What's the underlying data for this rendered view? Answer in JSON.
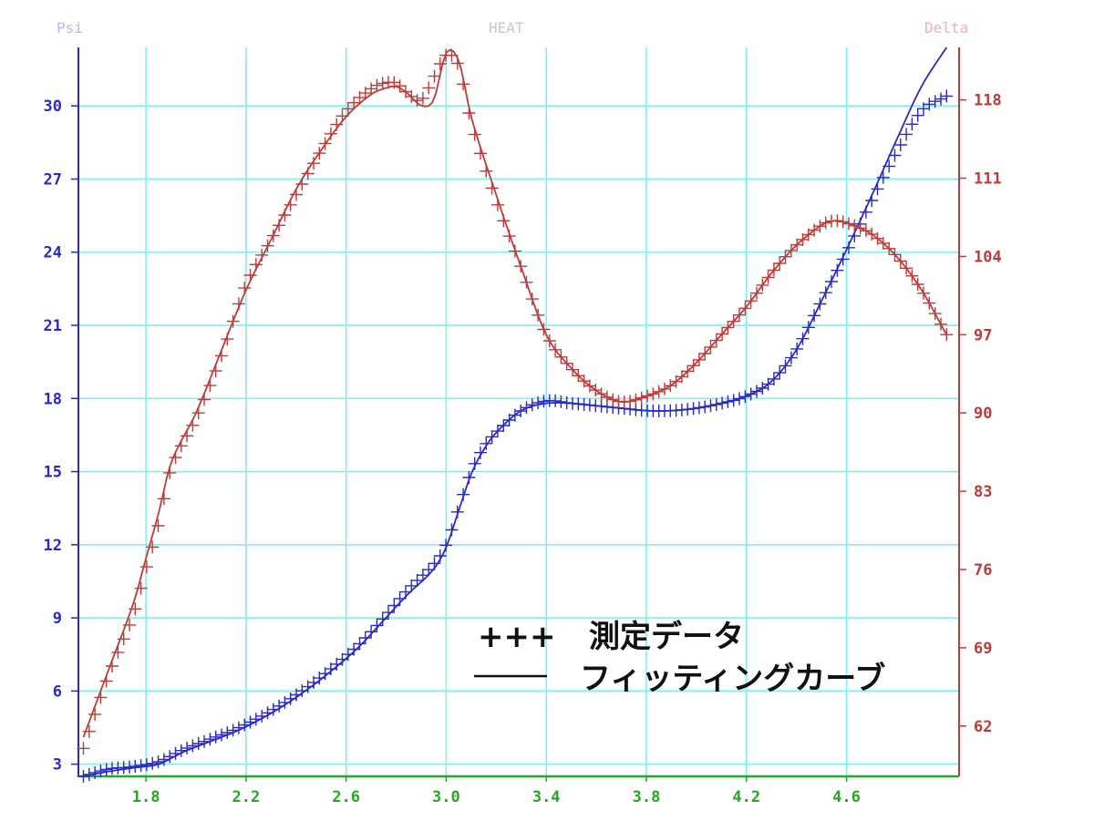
{
  "chart_data": {
    "type": "line",
    "title": "HEAT",
    "ylabel_left": "Psi",
    "ylabel_right": "Delta",
    "xlim": [
      1.53,
      5.05
    ],
    "ylim_left": [
      2.5,
      32.4
    ],
    "ylim_right": [
      57.5,
      122.7
    ],
    "grid": true,
    "x_ticks": [
      "1.8",
      "2.2",
      "2.6",
      "3.0",
      "3.4",
      "3.8",
      "4.2",
      "4.6"
    ],
    "y_left_ticks": [
      "3",
      "6",
      "9",
      "12",
      "15",
      "18",
      "21",
      "24",
      "27",
      "30"
    ],
    "y_right_ticks": [
      "62",
      "69",
      "76",
      "83",
      "90",
      "97",
      "104",
      "111",
      "118"
    ],
    "legend": {
      "placement": "bottom-right",
      "measured_marker": "+++",
      "measured_label": "測定データ",
      "fit_marker": "——",
      "fit_label": "フィッティングカーブ"
    },
    "colors": {
      "psi": "#2a2ac8",
      "delta": "#c03a3a",
      "grid": "#7ff0f0",
      "x_axis": "#22aa22"
    },
    "series": [
      {
        "axis": "left",
        "x": [
          1.55,
          1.65,
          1.75,
          1.85,
          1.95,
          2.05,
          2.15,
          2.25,
          2.35,
          2.45,
          2.55,
          2.65,
          2.75,
          2.85,
          2.95,
          3.0,
          3.05,
          3.1,
          3.15,
          3.2,
          3.3,
          3.4,
          3.5,
          3.6,
          3.7,
          3.8,
          3.9,
          4.0,
          4.1,
          4.2,
          4.3,
          4.4,
          4.5,
          4.6,
          4.7,
          4.8,
          4.9,
          5.0
        ],
        "measured": [
          2.5,
          2.8,
          2.9,
          3.1,
          3.6,
          4.0,
          4.4,
          4.9,
          5.5,
          6.2,
          7.0,
          7.9,
          9.0,
          10.2,
          11.2,
          12.0,
          13.5,
          15.0,
          16.0,
          16.6,
          17.5,
          17.9,
          17.8,
          17.7,
          17.6,
          17.5,
          17.5,
          17.6,
          17.8,
          18.1,
          18.7,
          20.0,
          22.0,
          24.0,
          26.1,
          28.1,
          29.8,
          30.4
        ],
        "fitting": [
          2.5,
          2.7,
          2.85,
          3.0,
          3.5,
          3.9,
          4.3,
          4.8,
          5.4,
          6.1,
          6.9,
          7.8,
          8.9,
          10.0,
          11.0,
          11.9,
          13.4,
          14.9,
          15.9,
          16.6,
          17.5,
          17.8,
          17.8,
          17.7,
          17.6,
          17.5,
          17.5,
          17.6,
          17.8,
          18.1,
          18.7,
          20.0,
          22.0,
          24.1,
          26.3,
          28.6,
          30.8,
          32.4
        ]
      },
      {
        "axis": "right",
        "x": [
          1.55,
          1.65,
          1.75,
          1.8,
          1.85,
          1.9,
          2.0,
          2.1,
          2.2,
          2.3,
          2.4,
          2.5,
          2.6,
          2.7,
          2.75,
          2.8,
          2.85,
          2.9,
          2.95,
          3.0,
          3.05,
          3.1,
          3.2,
          3.3,
          3.4,
          3.5,
          3.6,
          3.7,
          3.8,
          3.9,
          4.0,
          4.1,
          4.2,
          4.3,
          4.4,
          4.5,
          4.55,
          4.6,
          4.7,
          4.8,
          4.9,
          5.0
        ],
        "measured": [
          60.0,
          66.5,
          72.0,
          76.0,
          80.0,
          85.0,
          89.5,
          95.0,
          101.5,
          105.5,
          109.5,
          113.5,
          117.0,
          119.0,
          119.5,
          119.5,
          118.5,
          118.0,
          120.0,
          122.0,
          121.0,
          116.0,
          109.0,
          103.0,
          97.0,
          94.0,
          92.0,
          91.0,
          91.5,
          92.5,
          94.5,
          97.0,
          99.5,
          102.5,
          105.0,
          106.8,
          107.2,
          107.0,
          106.0,
          104.0,
          101.0,
          97.0
        ],
        "fitting": [
          61.0,
          67.0,
          73.0,
          77.0,
          81.0,
          85.5,
          90.0,
          95.5,
          101.0,
          105.5,
          110.0,
          113.5,
          116.5,
          118.5,
          119.0,
          119.2,
          118.5,
          117.5,
          118.0,
          122.2,
          121.5,
          116.5,
          109.5,
          103.0,
          97.0,
          94.0,
          92.0,
          91.0,
          91.5,
          92.5,
          94.5,
          97.0,
          99.5,
          102.5,
          105.0,
          106.8,
          107.2,
          107.0,
          106.0,
          104.0,
          101.0,
          97.0
        ]
      }
    ]
  }
}
